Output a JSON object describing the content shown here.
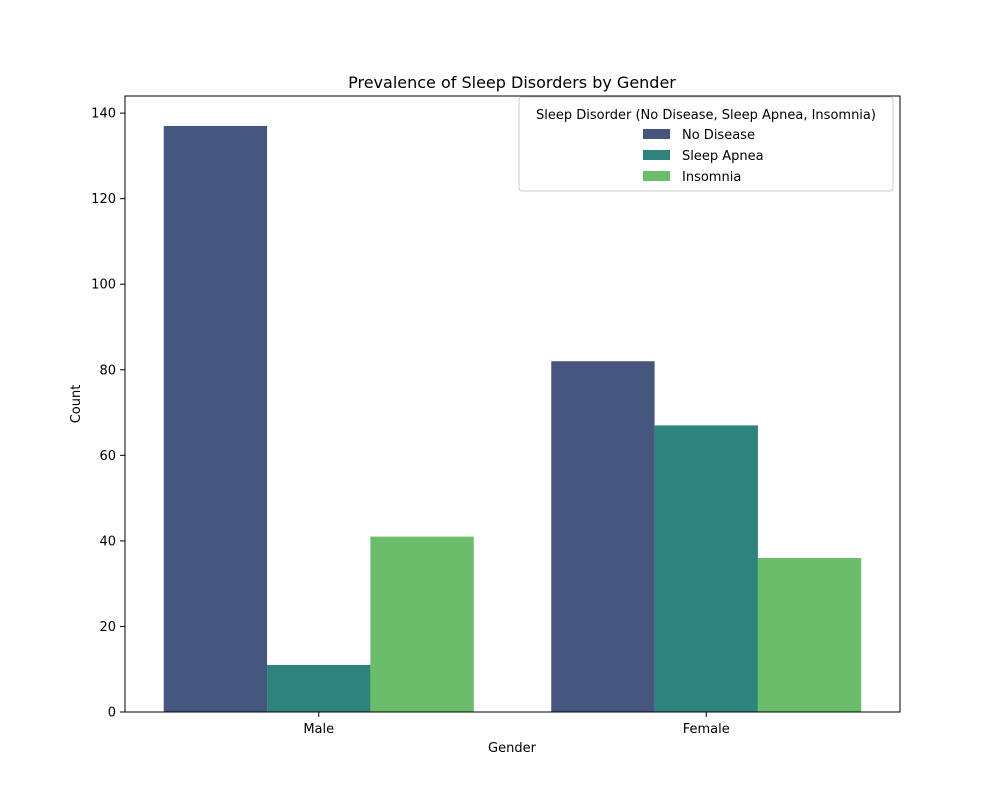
{
  "chart_data": {
    "type": "bar",
    "title": "Prevalence of Sleep Disorders by Gender",
    "xlabel": "Gender",
    "ylabel": "Count",
    "categories": [
      "Male",
      "Female"
    ],
    "series": [
      {
        "name": "No Disease",
        "values": [
          137,
          82
        ],
        "color": "#45577f"
      },
      {
        "name": "Sleep Apnea",
        "values": [
          11,
          67
        ],
        "color": "#2e837d"
      },
      {
        "name": "Insomnia",
        "values": [
          41,
          36
        ],
        "color": "#6bbc6b"
      }
    ],
    "ylim": [
      0,
      144
    ],
    "yticks": [
      0,
      20,
      40,
      60,
      80,
      100,
      120,
      140
    ],
    "grid": false,
    "legend": {
      "title": "Sleep Disorder (No Disease, Sleep Apnea, Insomnia)",
      "position": "top-right"
    }
  }
}
